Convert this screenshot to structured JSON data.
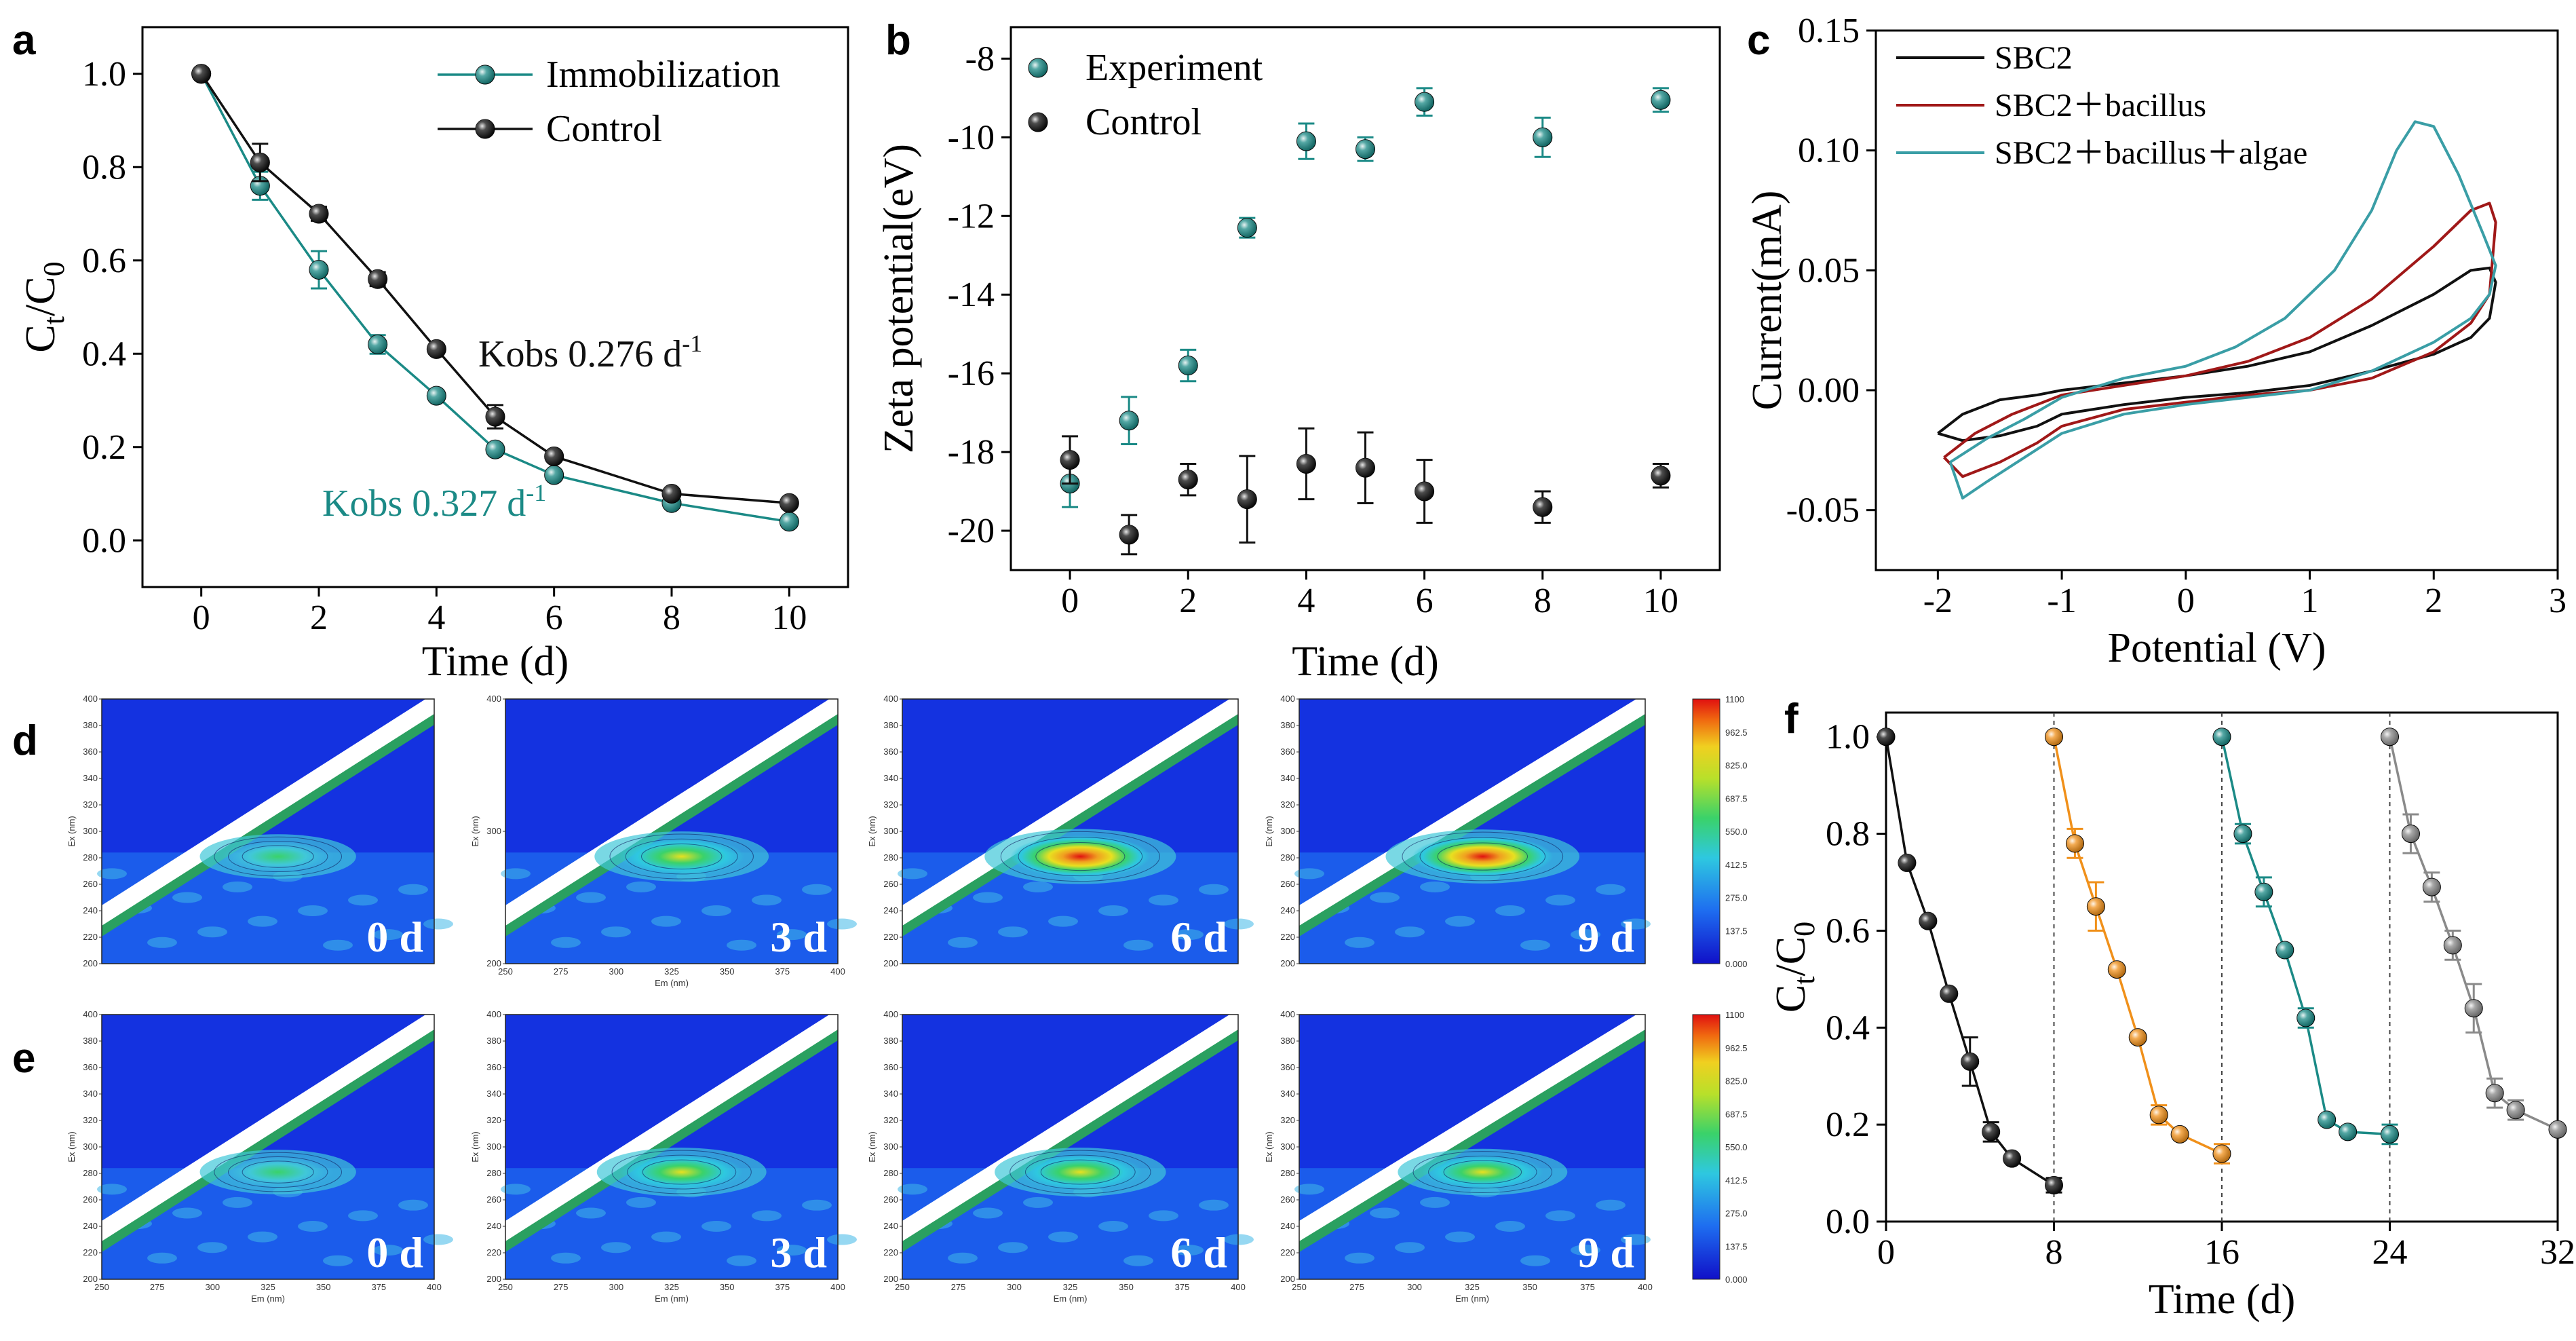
{
  "colors": {
    "teal": "#1b8a86",
    "black": "#111111",
    "red": "#a01818",
    "cv_teal": "#3a9ea6",
    "orange": "#f0901a",
    "gray": "#8a8a8a"
  },
  "panels": {
    "a": {
      "letter": "a"
    },
    "b": {
      "letter": "b"
    },
    "c": {
      "letter": "c"
    },
    "d": {
      "letter": "d"
    },
    "e": {
      "letter": "e"
    },
    "f": {
      "letter": "f"
    }
  },
  "chart_data": [
    {
      "id": "a",
      "type": "line",
      "xlabel": "Time (d)",
      "ylabel_main": "C",
      "ylabel_sub1": "t",
      "ylabel_mid": "/C",
      "ylabel_sub2": "0",
      "xlim": [
        -1,
        11
      ],
      "ylim": [
        -0.1,
        1.1
      ],
      "xticks": [
        0,
        2,
        4,
        6,
        8,
        10
      ],
      "yticks": [
        0.0,
        0.2,
        0.4,
        0.6,
        0.8,
        1.0
      ],
      "series": [
        {
          "name": "Immobilization",
          "color": "#1b8a86",
          "x": [
            0,
            1,
            2,
            3,
            4,
            5,
            6,
            8,
            10
          ],
          "y": [
            1.0,
            0.76,
            0.58,
            0.42,
            0.31,
            0.195,
            0.14,
            0.08,
            0.04
          ],
          "err": [
            0,
            0.03,
            0.04,
            0.02,
            0.01,
            0.01,
            0.01,
            0.01,
            0.01
          ]
        },
        {
          "name": "Control",
          "color": "#111111",
          "x": [
            0,
            1,
            2,
            3,
            4,
            5,
            6,
            8,
            10
          ],
          "y": [
            1.0,
            0.81,
            0.7,
            0.56,
            0.41,
            0.265,
            0.18,
            0.1,
            0.08
          ],
          "err": [
            0,
            0.04,
            0.015,
            0.015,
            0.01,
            0.025,
            0.01,
            0.01,
            0.01
          ]
        }
      ],
      "annotations": [
        {
          "text": "Kobs 0.276 d",
          "sup": "-1",
          "color": "#111111"
        },
        {
          "text": "Kobs 0.327 d",
          "sup": "-1",
          "color": "#1b8a86"
        }
      ]
    },
    {
      "id": "b",
      "type": "scatter",
      "xlabel": "Time (d)",
      "ylabel": "Zeta potential(eV)",
      "xlim": [
        -1,
        11
      ],
      "ylim": [
        -21,
        -7.2
      ],
      "xticks": [
        0,
        2,
        4,
        6,
        8,
        10
      ],
      "yticks": [
        -20,
        -18,
        -16,
        -14,
        -12,
        -10,
        -8
      ],
      "series": [
        {
          "name": "Experiment",
          "color": "#1b8a86",
          "x": [
            0,
            1,
            2,
            3,
            4,
            5,
            6,
            8,
            10
          ],
          "y": [
            -18.8,
            -17.2,
            -15.8,
            -12.3,
            -10.1,
            -10.3,
            -9.1,
            -10.0,
            -9.05
          ],
          "err": [
            0.6,
            0.6,
            0.4,
            0.25,
            0.45,
            0.3,
            0.35,
            0.5,
            0.3
          ]
        },
        {
          "name": "Control",
          "color": "#111111",
          "x": [
            0,
            1,
            2,
            3,
            4,
            5,
            6,
            8,
            10
          ],
          "y": [
            -18.2,
            -20.1,
            -18.7,
            -19.2,
            -18.3,
            -18.4,
            -19.0,
            -19.4,
            -18.6
          ],
          "err": [
            0.6,
            0.5,
            0.4,
            1.1,
            0.9,
            0.9,
            0.8,
            0.4,
            0.3
          ]
        }
      ]
    },
    {
      "id": "c",
      "type": "line",
      "xlabel": "Potential (V)",
      "ylabel": "Current(mA)",
      "xlim": [
        -2.5,
        3
      ],
      "ylim": [
        -0.075,
        0.15
      ],
      "xticks": [
        -2,
        -1,
        0,
        1,
        2,
        3
      ],
      "xtick_labels": [
        "-2",
        "-1",
        "0",
        "1",
        "2",
        "3"
      ],
      "yticks": [
        -0.05,
        0.0,
        0.05,
        0.1,
        0.15
      ],
      "ytick_labels": [
        "-0.05",
        "0.00",
        "0.05",
        "0.10",
        "0.15"
      ],
      "series": [
        {
          "name": "SBC2",
          "color": "#111111",
          "x": [
            -2.0,
            -1.8,
            -1.5,
            -1.2,
            -1.0,
            -0.5,
            0.0,
            0.5,
            1.0,
            1.5,
            2.0,
            2.3,
            2.45,
            2.5,
            2.45,
            2.3,
            2.0,
            1.5,
            1.0,
            0.5,
            0.0,
            -0.5,
            -1.0,
            -1.2,
            -1.5,
            -1.8,
            -2.0
          ],
          "y": [
            -0.018,
            -0.01,
            -0.004,
            -0.002,
            0.0,
            0.003,
            0.006,
            0.01,
            0.016,
            0.027,
            0.04,
            0.05,
            0.051,
            0.045,
            0.03,
            0.022,
            0.015,
            0.008,
            0.002,
            -0.001,
            -0.003,
            -0.006,
            -0.01,
            -0.015,
            -0.019,
            -0.021,
            -0.018
          ]
        },
        {
          "name": "SBC2＋bacillus",
          "color": "#a01818",
          "x": [
            -1.95,
            -1.7,
            -1.4,
            -1.2,
            -1.0,
            -0.5,
            0.0,
            0.5,
            1.0,
            1.5,
            2.0,
            2.3,
            2.45,
            2.5,
            2.45,
            2.3,
            2.0,
            1.5,
            1.0,
            0.5,
            0.0,
            -0.5,
            -1.0,
            -1.2,
            -1.5,
            -1.8,
            -1.95
          ],
          "y": [
            -0.028,
            -0.018,
            -0.01,
            -0.006,
            -0.002,
            0.002,
            0.006,
            0.012,
            0.022,
            0.038,
            0.06,
            0.075,
            0.078,
            0.07,
            0.04,
            0.028,
            0.016,
            0.005,
            0.0,
            -0.002,
            -0.005,
            -0.008,
            -0.015,
            -0.022,
            -0.03,
            -0.036,
            -0.028
          ]
        },
        {
          "name": "SBC2＋bacillus＋algae",
          "color": "#3a9ea6",
          "x": [
            -1.9,
            -1.6,
            -1.3,
            -1.0,
            -0.5,
            0.0,
            0.4,
            0.8,
            1.2,
            1.5,
            1.7,
            1.85,
            2.0,
            2.2,
            2.4,
            2.5,
            2.45,
            2.3,
            2.0,
            1.5,
            1.0,
            0.5,
            0.0,
            -0.5,
            -1.0,
            -1.3,
            -1.6,
            -1.8,
            -1.9
          ],
          "y": [
            -0.03,
            -0.02,
            -0.012,
            -0.003,
            0.005,
            0.01,
            0.018,
            0.03,
            0.05,
            0.075,
            0.1,
            0.112,
            0.11,
            0.09,
            0.065,
            0.052,
            0.04,
            0.03,
            0.02,
            0.008,
            0.0,
            -0.003,
            -0.006,
            -0.01,
            -0.018,
            -0.028,
            -0.038,
            -0.045,
            -0.03
          ]
        }
      ]
    },
    {
      "id": "f",
      "type": "line",
      "xlabel": "Time (d)",
      "ylabel_main": "C",
      "ylabel_sub1": "t",
      "ylabel_mid": "/C",
      "ylabel_sub2": "0",
      "xlim": [
        0,
        32
      ],
      "ylim": [
        0,
        1.05
      ],
      "xticks": [
        0,
        8,
        16,
        24,
        32
      ],
      "yticks": [
        0.0,
        0.2,
        0.4,
        0.6,
        0.8,
        1.0
      ],
      "dashed_lines_x": [
        8,
        16,
        24
      ],
      "series": [
        {
          "color": "#111111",
          "x": [
            0,
            1,
            2,
            3,
            4,
            5,
            6,
            8
          ],
          "y": [
            1.0,
            0.74,
            0.62,
            0.47,
            0.33,
            0.185,
            0.13,
            0.075
          ],
          "err": [
            0,
            0,
            0,
            0,
            0.05,
            0.02,
            0,
            0.015
          ]
        },
        {
          "color": "#f0901a",
          "x": [
            8,
            9,
            10,
            11,
            12,
            13,
            14,
            16
          ],
          "y": [
            1.0,
            0.78,
            0.65,
            0.52,
            0.38,
            0.22,
            0.18,
            0.14
          ],
          "err": [
            0,
            0.03,
            0.05,
            0,
            0,
            0.02,
            0,
            0.02
          ]
        },
        {
          "color": "#1b8a86",
          "x": [
            16,
            17,
            18,
            19,
            20,
            21,
            22,
            24
          ],
          "y": [
            1.0,
            0.8,
            0.68,
            0.56,
            0.42,
            0.21,
            0.185,
            0.18
          ],
          "err": [
            0,
            0.02,
            0.03,
            0,
            0.02,
            0,
            0,
            0.02
          ]
        },
        {
          "color": "#8a8a8a",
          "x": [
            24,
            25,
            26,
            27,
            28,
            29,
            30,
            32
          ],
          "y": [
            1.0,
            0.8,
            0.69,
            0.57,
            0.44,
            0.265,
            0.23,
            0.19
          ],
          "err": [
            0,
            0.04,
            0.03,
            0.03,
            0.05,
            0.03,
            0.02,
            0
          ]
        }
      ]
    }
  ],
  "eem": {
    "rows": [
      {
        "id": "d",
        "days": [
          "0 d",
          "3 d",
          "6 d",
          "9 d"
        ],
        "intensity": [
          0.35,
          0.62,
          0.85,
          0.8
        ]
      },
      {
        "id": "e",
        "days": [
          "0 d",
          "3 d",
          "6 d",
          "9 d"
        ],
        "intensity": [
          0.35,
          0.55,
          0.55,
          0.45
        ]
      }
    ],
    "ylabel": "Ex (nm)",
    "xlabel": "Em (nm)",
    "xtick_labels": [
      "250",
      "275",
      "300",
      "325",
      "350",
      "375",
      "400"
    ],
    "ytick_labels": [
      "200",
      "220",
      "240",
      "260",
      "280",
      "300",
      "320",
      "340",
      "360",
      "380",
      "400"
    ],
    "ytick_labels_short": [
      "200",
      "300",
      "400"
    ],
    "colorbar_labels": [
      "1100",
      "962.5",
      "825.0",
      "687.5",
      "550.0",
      "412.5",
      "275.0",
      "137.5",
      "0.000"
    ]
  }
}
